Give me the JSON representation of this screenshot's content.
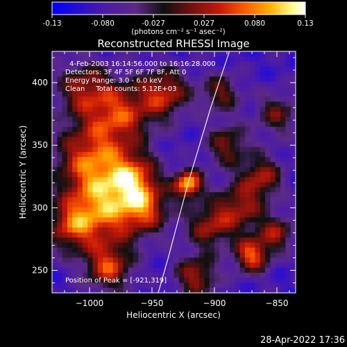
{
  "chart_data": {
    "type": "heatmap",
    "title": "Reconstructed RHESSI Image",
    "colorbar": {
      "range": [
        -0.13,
        0.13
      ],
      "tick_labels": [
        "-0.13",
        "-0.080",
        "-0.027",
        "0.027",
        "0.080",
        "0.13"
      ],
      "unit_label": "(photons cm⁻² s⁻¹ asec⁻²)",
      "colors": [
        "#0000ff",
        "#4b1aa8",
        "#5c2a86",
        "#101010",
        "#6a1010",
        "#c41808",
        "#ff5a00",
        "#ffb000",
        "#ffff90",
        "#ffffff"
      ]
    },
    "xlabel": "Heliocentric X (arcsec)",
    "ylabel": "Heliocentric Y (arcsec)",
    "xlim": [
      -1030,
      -835
    ],
    "ylim": [
      232,
      425
    ],
    "xticks": [
      -1000,
      -950,
      -900,
      -850
    ],
    "xtick_labels": [
      "−1000",
      "−950",
      "−900",
      "−850"
    ],
    "yticks": [
      250,
      300,
      350,
      400
    ],
    "ytick_labels": [
      "250",
      "300",
      "350",
      "400"
    ],
    "annotations": [
      "4-Feb-2003 16:14:56.000 to 16:16:28.000",
      "Detectors: 3F 4F 5F 6F 7F 8F, Att 0",
      "Energy Range: 3.0 - 6.0 keV",
      "Clean     Total counts: 5.12E+03"
    ],
    "peak_label": "Position of Peak = [-921,319]",
    "peak": [
      -921,
      319
    ],
    "limb_points": [
      [
        -945,
        232
      ],
      [
        -937,
        260
      ],
      [
        -929,
        290
      ],
      [
        -921,
        320
      ],
      [
        -912,
        350
      ],
      [
        -903,
        380
      ],
      [
        -893,
        410
      ],
      [
        -888,
        425
      ]
    ],
    "emission_sources": [
      {
        "x": -921,
        "y": 319,
        "amp": 0.13,
        "sigma": 8
      },
      {
        "x": -988,
        "y": 300,
        "amp": 0.095,
        "sigma": 22
      },
      {
        "x": -1000,
        "y": 340,
        "amp": 0.075,
        "sigma": 20
      },
      {
        "x": -975,
        "y": 375,
        "amp": 0.07,
        "sigma": 18
      },
      {
        "x": -940,
        "y": 392,
        "amp": 0.07,
        "sigma": 14
      },
      {
        "x": -1005,
        "y": 395,
        "amp": 0.05,
        "sigma": 16
      },
      {
        "x": -965,
        "y": 325,
        "amp": 0.06,
        "sigma": 14
      },
      {
        "x": -955,
        "y": 300,
        "amp": 0.055,
        "sigma": 14
      },
      {
        "x": -985,
        "y": 252,
        "amp": 0.075,
        "sigma": 13
      },
      {
        "x": -1015,
        "y": 285,
        "amp": 0.05,
        "sigma": 14
      },
      {
        "x": -870,
        "y": 262,
        "amp": 0.095,
        "sigma": 10
      },
      {
        "x": -880,
        "y": 300,
        "amp": 0.055,
        "sigma": 14
      },
      {
        "x": -862,
        "y": 325,
        "amp": 0.055,
        "sigma": 12
      },
      {
        "x": -905,
        "y": 285,
        "amp": 0.05,
        "sigma": 13
      },
      {
        "x": -915,
        "y": 245,
        "amp": 0.06,
        "sigma": 12
      },
      {
        "x": -890,
        "y": 350,
        "amp": 0.045,
        "sigma": 12
      },
      {
        "x": -895,
        "y": 392,
        "amp": 0.04,
        "sigma": 11
      },
      {
        "x": -850,
        "y": 375,
        "amp": 0.035,
        "sigma": 12
      },
      {
        "x": -850,
        "y": 280,
        "amp": 0.05,
        "sigma": 10
      }
    ],
    "background_level": -0.085
  },
  "footer": {
    "date": "28-Apr-2022 17:36"
  }
}
